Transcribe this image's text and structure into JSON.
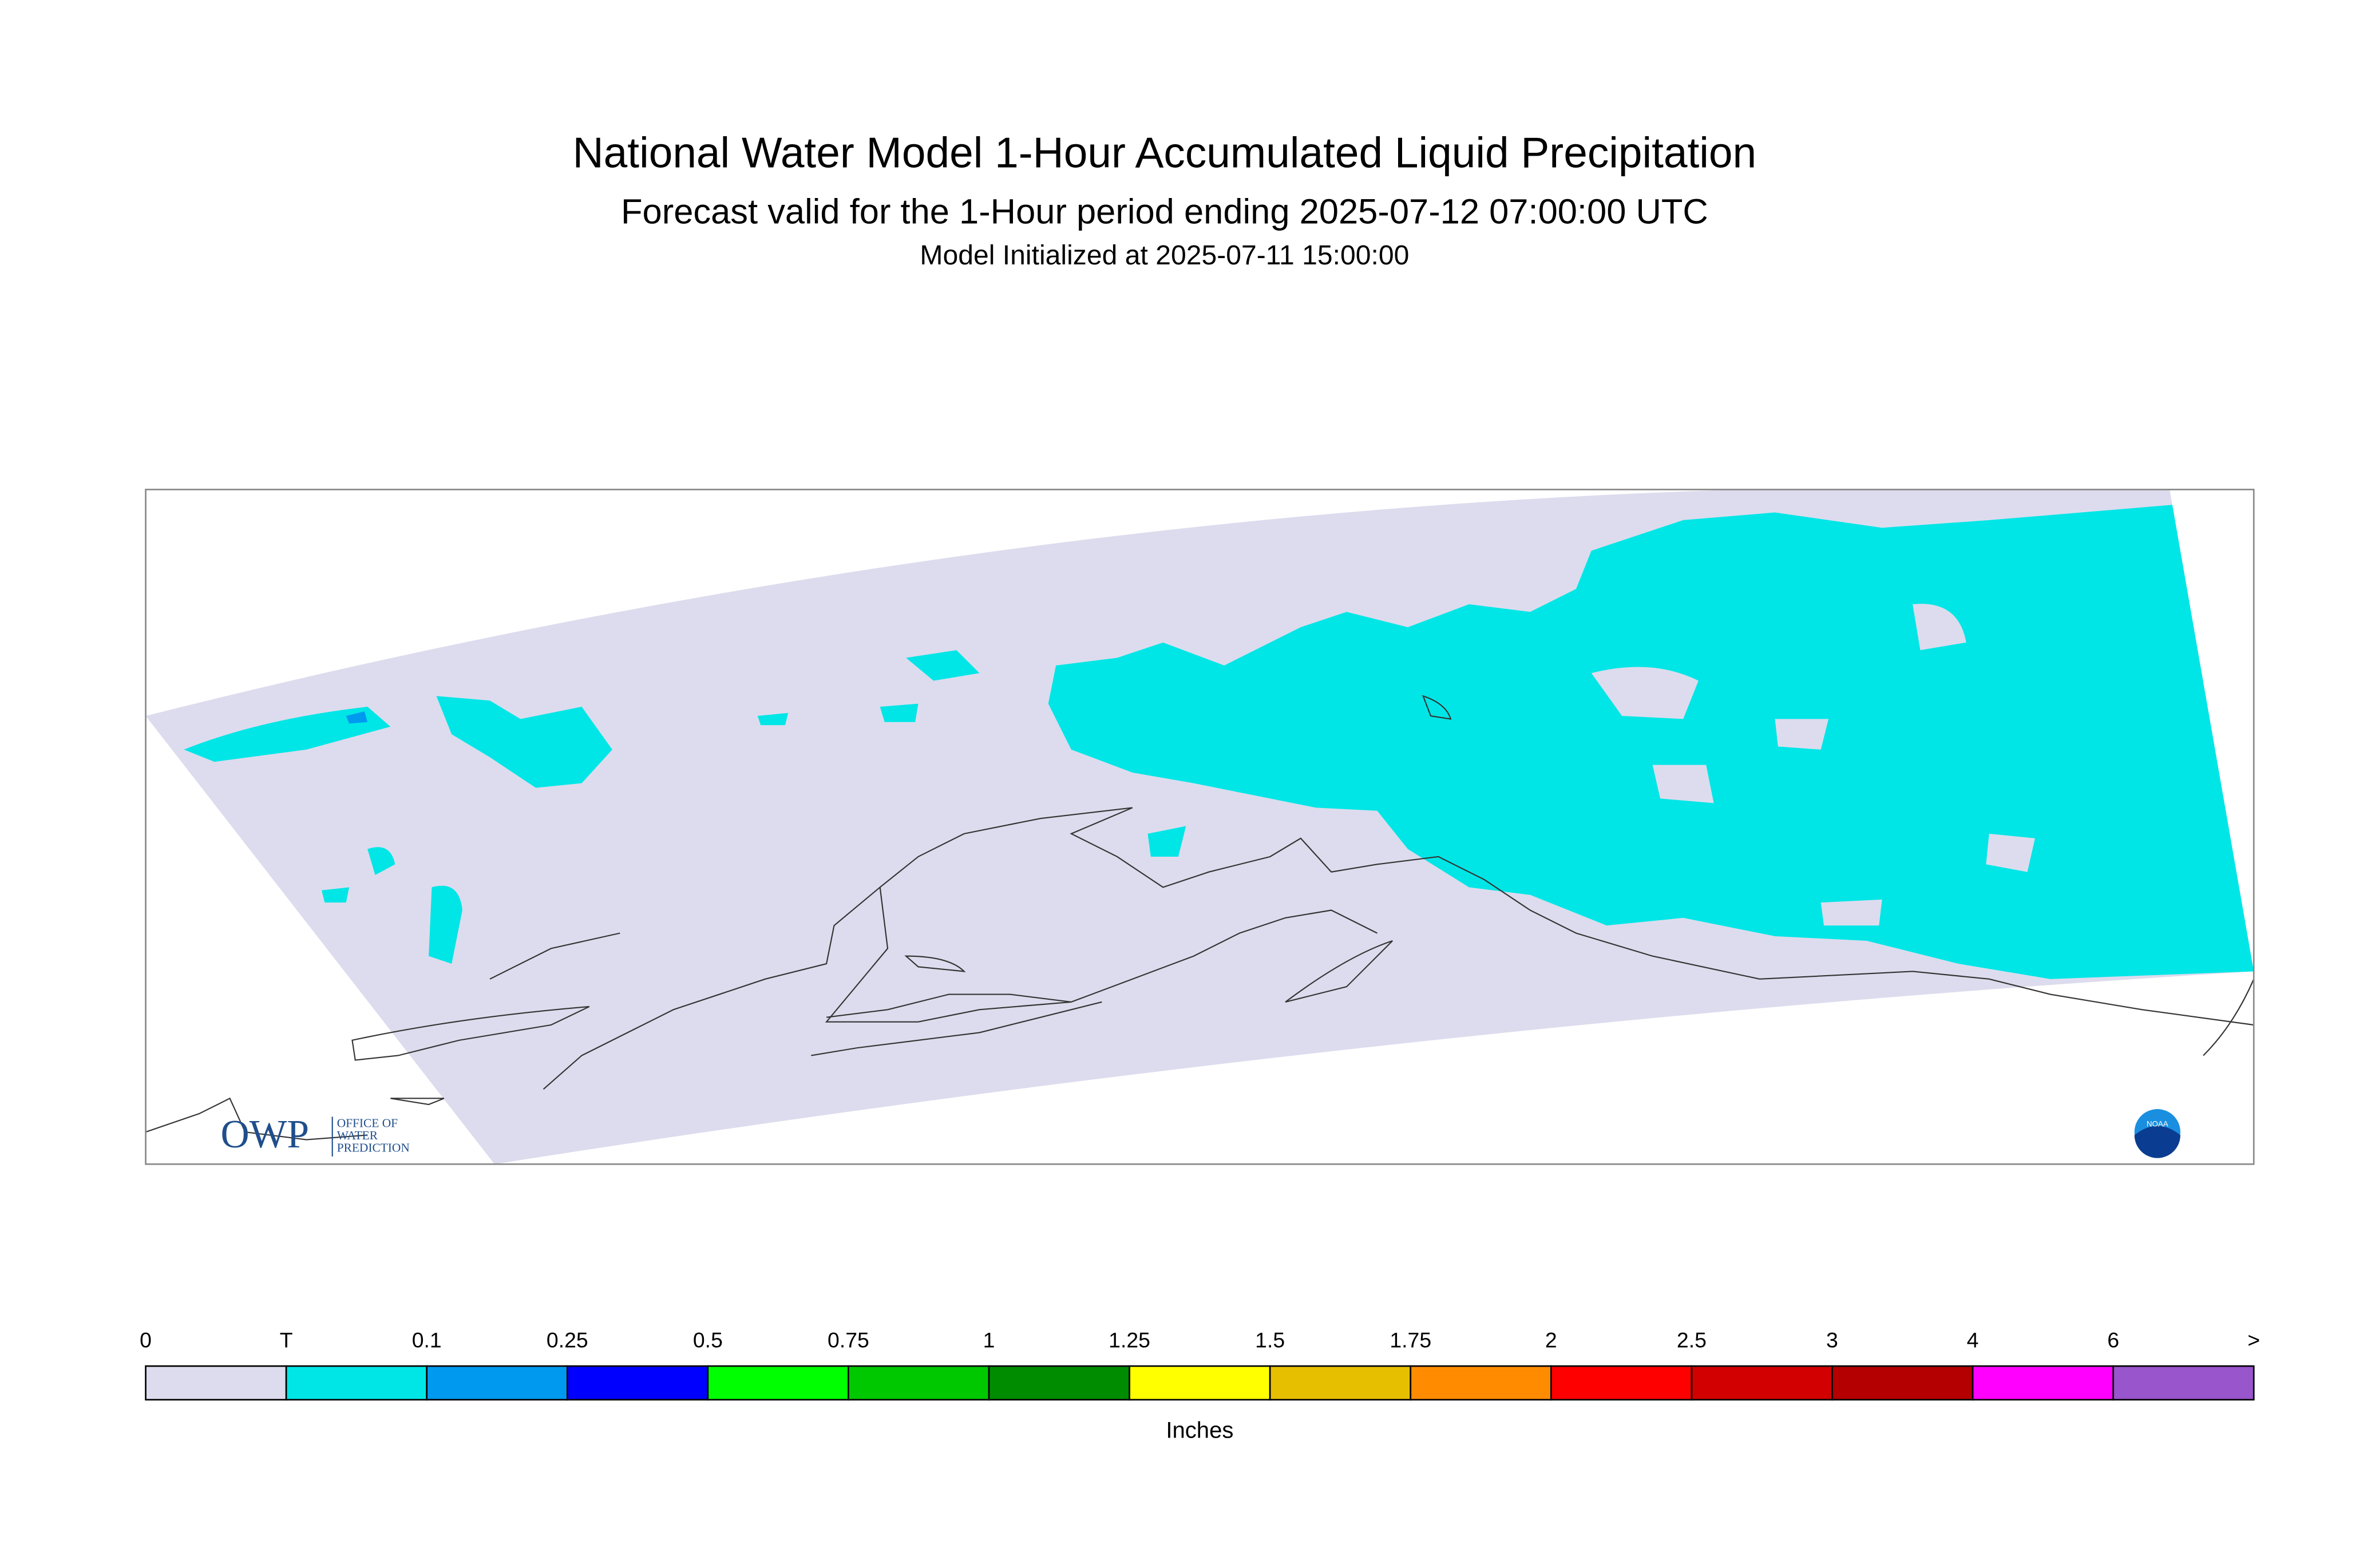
{
  "header": {
    "title": "National Water Model 1-Hour Accumulated Liquid Precipitation",
    "subtitle": "Forecast valid for the 1-Hour period ending 2025-07-12 07:00:00 UTC",
    "initialized": "Model Initialized at 2025-07-11 15:00:00"
  },
  "legend": {
    "labels": [
      "0",
      "T",
      "0.1",
      "0.25",
      "0.5",
      "0.75",
      "1",
      "1.25",
      "1.5",
      "1.75",
      "2",
      "2.5",
      "3",
      "4",
      "6",
      ">"
    ],
    "colors": [
      "#dcdcee",
      "#00e6e6",
      "#0099f0",
      "#0000ff",
      "#00ff00",
      "#00c800",
      "#008c00",
      "#ffff00",
      "#e6c000",
      "#ff8c00",
      "#ff0000",
      "#d20000",
      "#b40000",
      "#ff00ff",
      "#9955cc"
    ],
    "unit": "Inches"
  },
  "logos": {
    "owp": "OWP",
    "owp_text": [
      "OFFICE OF",
      "WATER",
      "PREDICTION"
    ],
    "noaa": "NOAA"
  }
}
